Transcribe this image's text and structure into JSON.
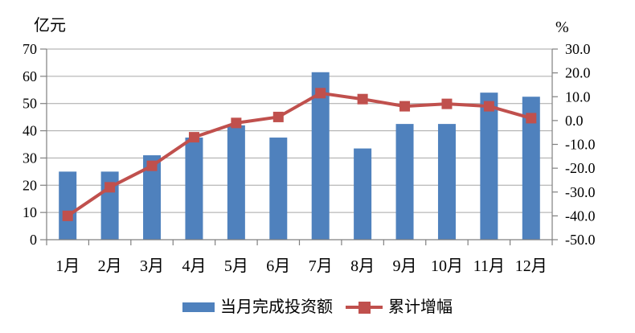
{
  "chart_data": {
    "type": "bar",
    "combo": "bar+line",
    "title": "",
    "categories": [
      "1月",
      "2月",
      "3月",
      "4月",
      "5月",
      "6月",
      "7月",
      "8月",
      "9月",
      "10月",
      "11月",
      "12月"
    ],
    "series": [
      {
        "name": "当月完成投资额",
        "type": "bar",
        "axis": "left",
        "color": "#4F81BD",
        "values": [
          25,
          25,
          31,
          37.5,
          42,
          37.5,
          61.5,
          33.5,
          42.5,
          42.5,
          54,
          52.5
        ]
      },
      {
        "name": "累计增幅",
        "type": "line",
        "axis": "right",
        "color": "#C0504D",
        "marker": "square",
        "values": [
          -40,
          -28,
          -19,
          -7,
          -1,
          1.5,
          11.5,
          9,
          6,
          7,
          6,
          1
        ]
      }
    ],
    "left_axis": {
      "title": "亿元",
      "min": 0,
      "max": 70,
      "step": 10,
      "tick_labels": [
        "70",
        "60",
        "50",
        "40",
        "30",
        "20",
        "10",
        "0"
      ]
    },
    "right_axis": {
      "title": "%",
      "min": -50,
      "max": 30,
      "step": 10,
      "tick_labels": [
        "30.0",
        "20.0",
        "10.0",
        "0.0",
        "-10.0",
        "-20.0",
        "-30.0",
        "-40.0",
        "-50.0"
      ]
    },
    "grid": true,
    "legend_position": "bottom"
  },
  "colors": {
    "bar": "#4F81BD",
    "line": "#C0504D",
    "axis": "#808080",
    "gridline": "#A6A6A6",
    "background": "#FFFFFF",
    "text": "#000000"
  }
}
